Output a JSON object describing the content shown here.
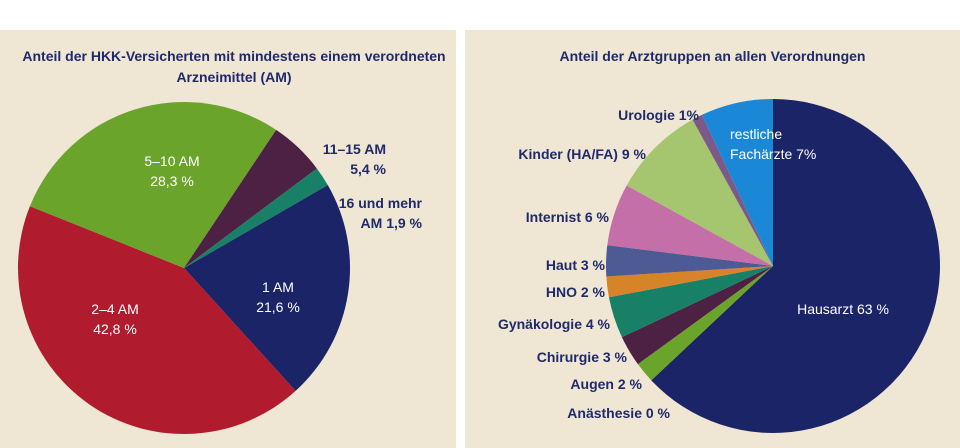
{
  "chart_data": [
    {
      "type": "pie",
      "title": "Anteil der HKK-Versicherten mit mindestens einem verordneten Arzneimittel (AM)",
      "slices": [
        {
          "name": "1 AM",
          "value": 21.6,
          "value_label": "21,6 %",
          "color": "#1b2466"
        },
        {
          "name": "2–4 AM",
          "value": 42.8,
          "value_label": "42,8 %",
          "color": "#b01b2e"
        },
        {
          "name": "5–10 AM",
          "value": 28.3,
          "value_label": "28,3 %",
          "color": "#6aa42b"
        },
        {
          "name": "11–15 AM",
          "value": 5.4,
          "value_label": "5,4 %",
          "color": "#4d2143"
        },
        {
          "name": "16 und mehr AM",
          "value": 1.9,
          "value_label": "1,9 %",
          "color": "#178066"
        }
      ],
      "label_lines": {
        "1 AM": [
          "1 AM",
          "21,6 %"
        ],
        "2–4 AM": [
          "2–4 AM",
          "42,8 %"
        ],
        "5–10 AM": [
          "5–10 AM",
          "28,3 %"
        ],
        "11–15 AM": [
          "11–15 AM",
          "5,4 %"
        ],
        "16 und mehr AM": [
          "16 und mehr",
          "AM 1,9 %"
        ]
      }
    },
    {
      "type": "pie",
      "title": "Anteil der Arztgruppen an allen Verordnungen",
      "slices": [
        {
          "name": "Hausarzt",
          "value": 63,
          "value_label": "63 %",
          "color": "#1b2466"
        },
        {
          "name": "Anästhesie",
          "value": 0,
          "value_label": "0 %",
          "color": "#c28a3a"
        },
        {
          "name": "Augen",
          "value": 2,
          "value_label": "2 %",
          "color": "#6aa42b"
        },
        {
          "name": "Chirurgie",
          "value": 3,
          "value_label": "3 %",
          "color": "#4d2143"
        },
        {
          "name": "Gynäkologie",
          "value": 4,
          "value_label": "4 %",
          "color": "#178066"
        },
        {
          "name": "HNO",
          "value": 2,
          "value_label": "2 %",
          "color": "#d6832a"
        },
        {
          "name": "Haut",
          "value": 3,
          "value_label": "3 %",
          "color": "#4e5a94"
        },
        {
          "name": "Internist",
          "value": 6,
          "value_label": "6 %",
          "color": "#c46fa8"
        },
        {
          "name": "Kinder (HA/FA)",
          "value": 9,
          "value_label": "9 %",
          "color": "#a6c56f"
        },
        {
          "name": "Urologie",
          "value": 1,
          "value_label": "1%",
          "color": "#7b5a8a"
        },
        {
          "name": "restliche Fachärzte",
          "value": 7,
          "value_label": "7%",
          "color": "#1a88d6"
        }
      ],
      "label_lines": {
        "Hausarzt": [
          "Hausarzt 63 %"
        ],
        "Anästhesie": [
          "Anästhesie 0 %"
        ],
        "Augen": [
          "Augen 2 %"
        ],
        "Chirurgie": [
          "Chirurgie 3 %"
        ],
        "Gynäkologie": [
          "Gynäkologie 4 %"
        ],
        "HNO": [
          "HNO 2 %"
        ],
        "Haut": [
          "Haut 3 %"
        ],
        "Internist": [
          "Internist 6 %"
        ],
        "Kinder (HA/FA)": [
          "Kinder (HA/FA) 9 %"
        ],
        "Urologie": [
          "Urologie 1%"
        ],
        "restliche Fachärzte": [
          "restliche",
          "Fachärzte 7%"
        ]
      }
    }
  ]
}
